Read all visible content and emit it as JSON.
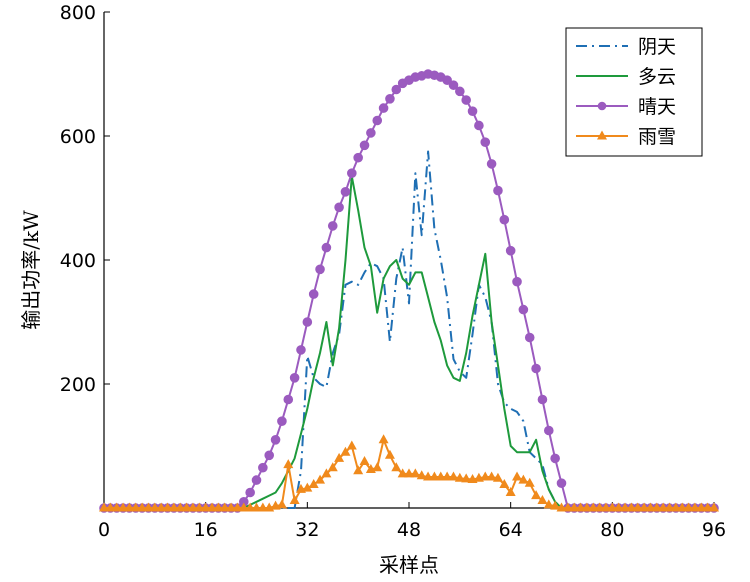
{
  "chart_data": {
    "type": "line",
    "xlabel": "采样点",
    "ylabel": "输出功率/kW",
    "xlim": [
      0,
      96
    ],
    "ylim": [
      0,
      800
    ],
    "xticks": [
      0,
      16,
      32,
      48,
      64,
      80,
      96
    ],
    "yticks": [
      200,
      400,
      600,
      800
    ],
    "grid": false,
    "legend_position": "top-right",
    "series": [
      {
        "name": "阴天",
        "color": "#1f6fb4",
        "style": "dashdot",
        "marker": "none",
        "x": [
          0,
          30,
          31,
          32,
          33,
          34,
          35,
          36,
          37,
          38,
          39,
          40,
          41,
          42,
          43,
          44,
          45,
          46,
          47,
          48,
          49,
          50,
          51,
          52,
          53,
          54,
          55,
          56,
          57,
          58,
          59,
          60,
          61,
          62,
          63,
          64,
          65,
          66,
          67,
          68,
          69,
          70,
          71,
          72,
          96
        ],
        "y": [
          0,
          0,
          60,
          245,
          210,
          200,
          195,
          250,
          280,
          360,
          365,
          360,
          380,
          395,
          390,
          370,
          268,
          370,
          420,
          330,
          540,
          440,
          575,
          450,
          400,
          340,
          240,
          220,
          210,
          280,
          360,
          340,
          300,
          200,
          170,
          160,
          155,
          140,
          90,
          80,
          70,
          30,
          10,
          0,
          0
        ]
      },
      {
        "name": "多云",
        "color": "#1e9a3c",
        "style": "solid",
        "marker": "none",
        "x": [
          0,
          22,
          23,
          24,
          25,
          26,
          27,
          28,
          29,
          30,
          31,
          32,
          33,
          34,
          35,
          36,
          37,
          38,
          39,
          40,
          41,
          42,
          43,
          44,
          45,
          46,
          47,
          48,
          49,
          50,
          51,
          52,
          53,
          54,
          55,
          56,
          57,
          58,
          59,
          60,
          61,
          62,
          63,
          64,
          65,
          66,
          67,
          68,
          69,
          70,
          71,
          72,
          96
        ],
        "y": [
          0,
          0,
          5,
          10,
          15,
          20,
          25,
          40,
          60,
          80,
          120,
          160,
          210,
          250,
          300,
          230,
          290,
          400,
          535,
          480,
          420,
          390,
          315,
          370,
          390,
          400,
          370,
          360,
          380,
          380,
          340,
          300,
          270,
          230,
          210,
          205,
          250,
          310,
          360,
          410,
          300,
          230,
          160,
          100,
          90,
          90,
          90,
          110,
          60,
          30,
          10,
          0,
          0
        ]
      },
      {
        "name": "晴天",
        "color": "#9b5bbf",
        "style": "solid",
        "marker": "circle",
        "x": [
          0,
          1,
          2,
          3,
          4,
          5,
          6,
          7,
          8,
          9,
          10,
          11,
          12,
          13,
          14,
          15,
          16,
          17,
          18,
          19,
          20,
          21,
          22,
          23,
          24,
          25,
          26,
          27,
          28,
          29,
          30,
          31,
          32,
          33,
          34,
          35,
          36,
          37,
          38,
          39,
          40,
          41,
          42,
          43,
          44,
          45,
          46,
          47,
          48,
          49,
          50,
          51,
          52,
          53,
          54,
          55,
          56,
          57,
          58,
          59,
          60,
          61,
          62,
          63,
          64,
          65,
          66,
          67,
          68,
          69,
          70,
          71,
          72,
          73,
          74,
          75,
          76,
          77,
          78,
          79,
          80,
          81,
          82,
          83,
          84,
          85,
          86,
          87,
          88,
          89,
          90,
          91,
          92,
          93,
          94,
          95,
          96
        ],
        "y": [
          0,
          0,
          0,
          0,
          0,
          0,
          0,
          0,
          0,
          0,
          0,
          0,
          0,
          0,
          0,
          0,
          0,
          0,
          0,
          0,
          0,
          0,
          10,
          25,
          45,
          65,
          85,
          110,
          140,
          175,
          210,
          255,
          300,
          345,
          385,
          420,
          455,
          485,
          510,
          540,
          565,
          585,
          605,
          625,
          645,
          660,
          675,
          685,
          690,
          695,
          697,
          700,
          698,
          695,
          690,
          682,
          672,
          658,
          640,
          617,
          590,
          555,
          512,
          465,
          415,
          365,
          320,
          275,
          225,
          175,
          125,
          80,
          40,
          0,
          0,
          0,
          0,
          0,
          0,
          0,
          0,
          0,
          0,
          0,
          0,
          0,
          0,
          0,
          0,
          0,
          0,
          0,
          0,
          0,
          0,
          0,
          0
        ]
      },
      {
        "name": "雨雪",
        "color": "#f08a1c",
        "style": "solid",
        "marker": "triangle",
        "x": [
          0,
          1,
          2,
          3,
          4,
          5,
          6,
          7,
          8,
          9,
          10,
          11,
          12,
          13,
          14,
          15,
          16,
          17,
          18,
          19,
          20,
          21,
          22,
          23,
          24,
          25,
          26,
          27,
          28,
          29,
          30,
          31,
          32,
          33,
          34,
          35,
          36,
          37,
          38,
          39,
          40,
          41,
          42,
          43,
          44,
          45,
          46,
          47,
          48,
          49,
          50,
          51,
          52,
          53,
          54,
          55,
          56,
          57,
          58,
          59,
          60,
          61,
          62,
          63,
          64,
          65,
          66,
          67,
          68,
          69,
          70,
          71,
          72,
          73,
          74,
          75,
          76,
          77,
          78,
          79,
          80,
          81,
          82,
          83,
          84,
          85,
          86,
          87,
          88,
          89,
          90,
          91,
          92,
          93,
          94,
          95,
          96
        ],
        "y": [
          0,
          0,
          0,
          0,
          0,
          0,
          0,
          0,
          0,
          0,
          0,
          0,
          0,
          0,
          0,
          0,
          0,
          0,
          0,
          0,
          0,
          0,
          0,
          0,
          0,
          0,
          0,
          3,
          5,
          70,
          12,
          30,
          32,
          38,
          45,
          55,
          65,
          80,
          90,
          100,
          60,
          75,
          62,
          65,
          110,
          85,
          65,
          55,
          55,
          55,
          52,
          50,
          50,
          50,
          50,
          50,
          48,
          47,
          46,
          48,
          50,
          50,
          48,
          38,
          25,
          50,
          45,
          40,
          20,
          12,
          5,
          3,
          0,
          0,
          0,
          0,
          0,
          0,
          0,
          0,
          0,
          0,
          0,
          0,
          0,
          0,
          0,
          0,
          0,
          0,
          0,
          0,
          0,
          0,
          0,
          0,
          0
        ]
      }
    ]
  }
}
